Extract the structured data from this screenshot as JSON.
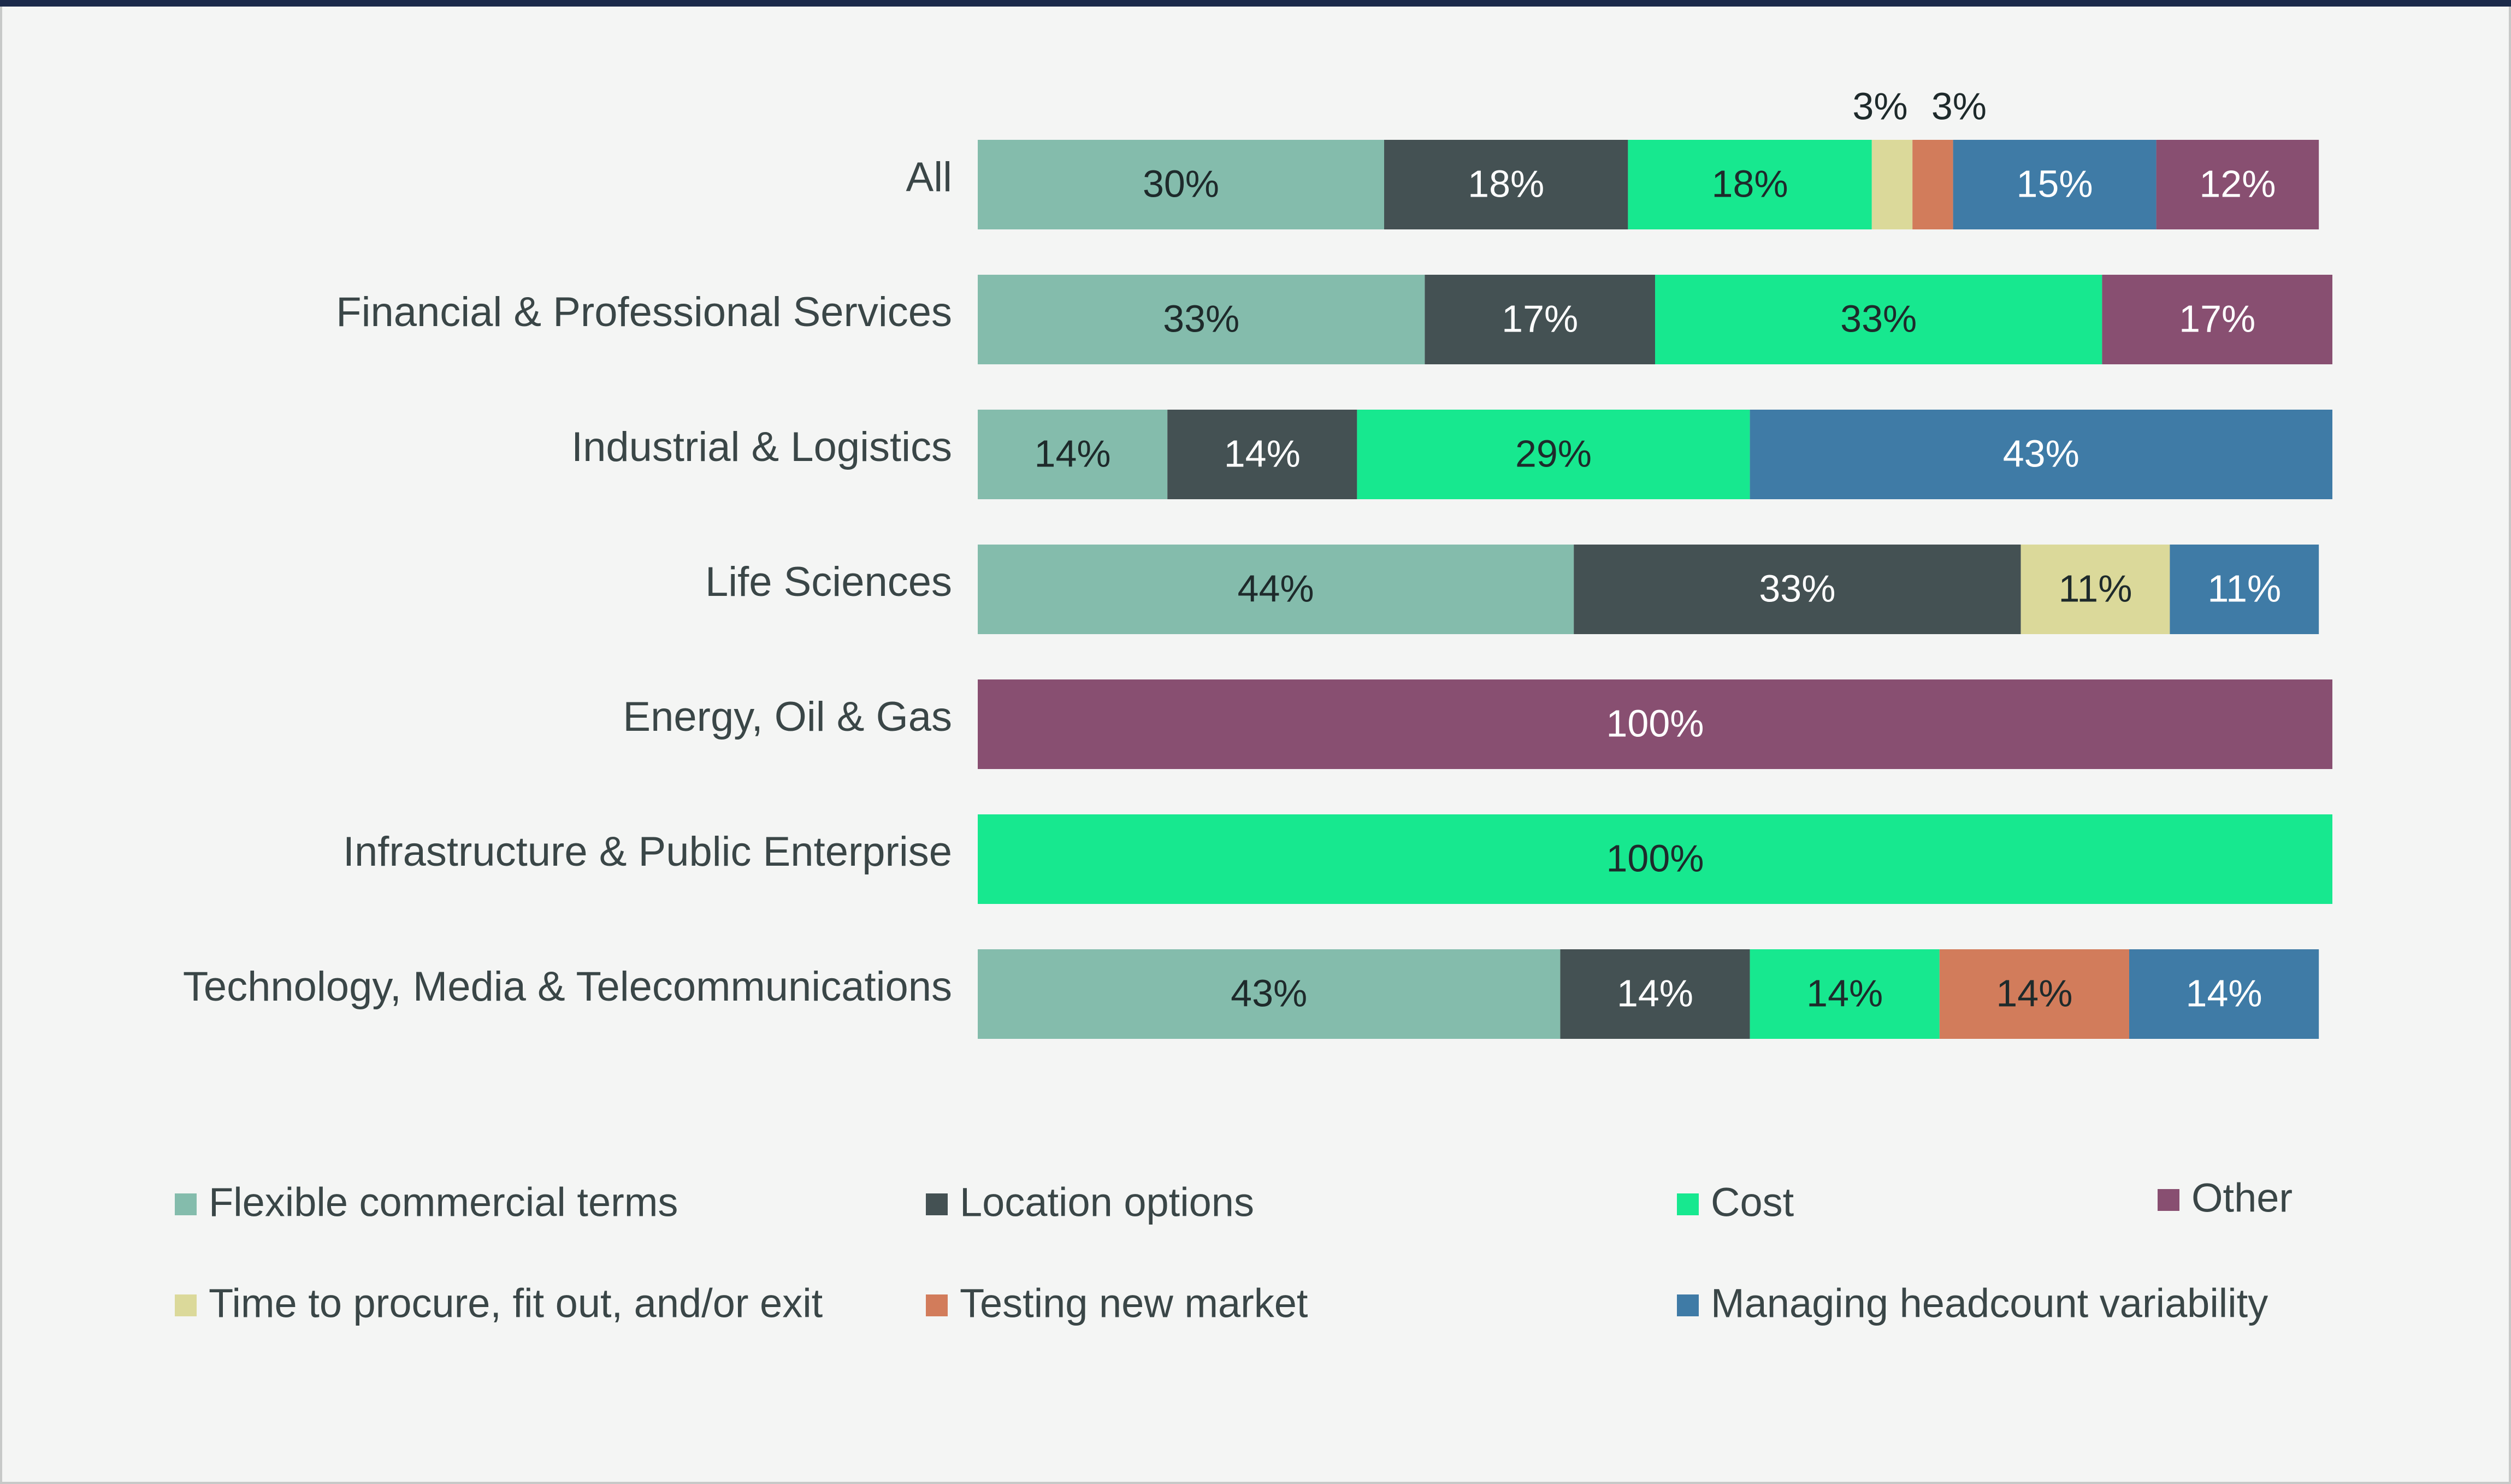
{
  "colors": {
    "top_rule": "#1b2a4a",
    "background": "#f4f5f4",
    "border": "#c7c9c8",
    "category_text": "#3a4647",
    "legend_text": "#3a4647"
  },
  "chart_data": {
    "type": "bar",
    "orientation": "horizontal",
    "stacked": true,
    "percent_stacked": true,
    "title": "",
    "xlabel": "",
    "ylabel": "",
    "xlim": [
      0,
      100
    ],
    "grid": false,
    "legend_position": "bottom",
    "categories": [
      "All",
      "Financial & Professional Services",
      "Industrial & Logistics",
      "Life Sciences",
      "Energy, Oil & Gas",
      "Infrastructure & Public Enterprise",
      "Technology, Media & Telecommunications"
    ],
    "series": [
      {
        "key": "flexible",
        "name": "Flexible commercial terms",
        "color": "#84bcac",
        "label_color": "#1e2a2b",
        "values": [
          30,
          33,
          14,
          44,
          0,
          0,
          43
        ]
      },
      {
        "key": "location",
        "name": "Location options",
        "color": "#445153",
        "label_color": "#ffffff",
        "values": [
          18,
          17,
          14,
          33,
          0,
          0,
          14
        ]
      },
      {
        "key": "cost",
        "name": "Cost",
        "color": "#17e88f",
        "label_color": "#1e2a2b",
        "values": [
          18,
          33,
          29,
          0,
          0,
          100,
          14
        ]
      },
      {
        "key": "time",
        "name": "Time to procure, fit out, and/or exit",
        "color": "#dbd99a",
        "label_color": "#1e2a2b",
        "values": [
          3,
          0,
          0,
          11,
          0,
          0,
          0
        ]
      },
      {
        "key": "testing",
        "name": "Testing new market",
        "color": "#d27c5b",
        "label_color": "#1e2a2b",
        "values": [
          3,
          0,
          0,
          0,
          0,
          0,
          14
        ]
      },
      {
        "key": "headcount",
        "name": "Managing headcount variability",
        "color": "#3f7ba6",
        "label_color": "#ffffff",
        "values": [
          15,
          0,
          43,
          11,
          0,
          0,
          14
        ]
      },
      {
        "key": "other",
        "name": "Other",
        "color": "#884f71",
        "label_color": "#ffffff",
        "values": [
          12,
          17,
          0,
          0,
          100,
          0,
          0
        ]
      }
    ],
    "legend_order": [
      "flexible",
      "location",
      "cost",
      "other",
      "time",
      "testing",
      "headcount"
    ],
    "label_suffix": "%"
  }
}
